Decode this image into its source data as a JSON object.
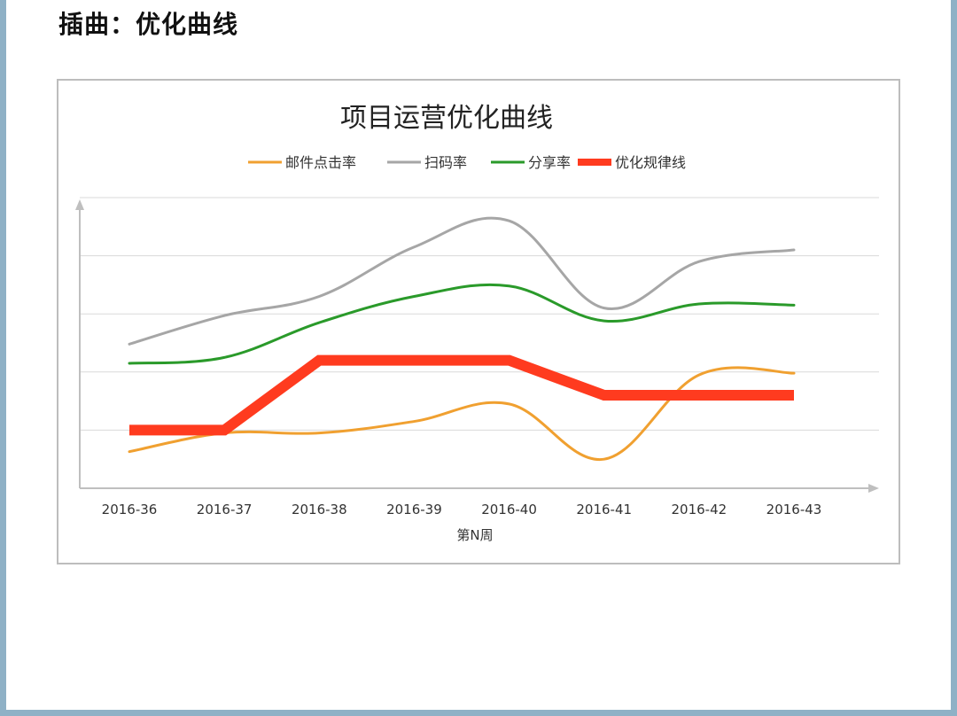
{
  "page": {
    "title": "插曲：优化曲线"
  },
  "chart_data": {
    "type": "line",
    "title": "项目运营优化曲线",
    "xlabel": "第N周",
    "ylabel": "",
    "categories": [
      "2016-36",
      "2016-37",
      "2016-38",
      "2016-39",
      "2016-40",
      "2016-41",
      "2016-42",
      "2016-43"
    ],
    "ylim": [
      0,
      5
    ],
    "grid": true,
    "legend_position": "top",
    "smooth": true,
    "series": [
      {
        "name": "邮件点击率",
        "color": "#f0a030",
        "width": 3,
        "values": [
          0.63,
          0.95,
          0.95,
          1.15,
          1.45,
          0.5,
          1.95,
          1.98
        ]
      },
      {
        "name": "扫码率",
        "color": "#a6a6a6",
        "width": 3,
        "values": [
          2.48,
          2.97,
          3.3,
          4.15,
          4.6,
          3.1,
          3.9,
          4.1
        ]
      },
      {
        "name": "分享率",
        "color": "#2a9a2a",
        "width": 3,
        "values": [
          2.15,
          2.25,
          2.85,
          3.3,
          3.48,
          2.88,
          3.17,
          3.15
        ]
      },
      {
        "name": "优化规律线",
        "color": "#ff3b1f",
        "width": 12,
        "smooth": false,
        "values": [
          1.0,
          1.0,
          2.2,
          2.2,
          2.2,
          1.6,
          1.6,
          1.6
        ]
      }
    ]
  }
}
